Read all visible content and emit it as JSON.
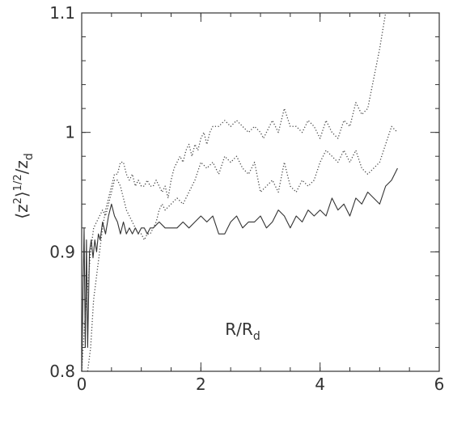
{
  "chart_data": {
    "type": "line",
    "xlabel": {
      "main": "R/R",
      "sub": "d"
    },
    "ylabel": {
      "open": "⟨z",
      "sup1": "2",
      "mid": "⟩",
      "sup2": "1/2",
      "slash": "/z",
      "sub": "d"
    },
    "xlim": [
      0,
      6
    ],
    "ylim": [
      0.8,
      1.1
    ],
    "xticks": [
      {
        "value": 0,
        "label": "0"
      },
      {
        "value": 2,
        "label": "2"
      },
      {
        "value": 4,
        "label": "4"
      },
      {
        "value": 6,
        "label": "6"
      }
    ],
    "yticks": [
      {
        "value": 0.8,
        "label": "0.8"
      },
      {
        "value": 0.9,
        "label": "0.9"
      },
      {
        "value": 1.0,
        "label": "1"
      },
      {
        "value": 1.1,
        "label": "1.1"
      }
    ],
    "minor_x_step": 0.5,
    "minor_y_step": 0.02,
    "grid": false,
    "legend": "none",
    "series": [
      {
        "style": "solid",
        "color": "#333333",
        "points": [
          [
            0.0,
            0.8
          ],
          [
            0.02,
            0.86
          ],
          [
            0.04,
            0.92
          ],
          [
            0.06,
            0.82
          ],
          [
            0.08,
            0.91
          ],
          [
            0.1,
            0.82
          ],
          [
            0.13,
            0.9
          ],
          [
            0.16,
            0.91
          ],
          [
            0.19,
            0.895
          ],
          [
            0.22,
            0.91
          ],
          [
            0.25,
            0.9
          ],
          [
            0.28,
            0.915
          ],
          [
            0.31,
            0.91
          ],
          [
            0.35,
            0.925
          ],
          [
            0.4,
            0.915
          ],
          [
            0.45,
            0.93
          ],
          [
            0.5,
            0.94
          ],
          [
            0.55,
            0.93
          ],
          [
            0.6,
            0.925
          ],
          [
            0.65,
            0.915
          ],
          [
            0.7,
            0.925
          ],
          [
            0.75,
            0.915
          ],
          [
            0.8,
            0.92
          ],
          [
            0.85,
            0.915
          ],
          [
            0.9,
            0.92
          ],
          [
            0.95,
            0.915
          ],
          [
            1.0,
            0.92
          ],
          [
            1.05,
            0.92
          ],
          [
            1.1,
            0.915
          ],
          [
            1.15,
            0.92
          ],
          [
            1.2,
            0.92
          ],
          [
            1.3,
            0.925
          ],
          [
            1.4,
            0.92
          ],
          [
            1.5,
            0.92
          ],
          [
            1.6,
            0.92
          ],
          [
            1.7,
            0.925
          ],
          [
            1.8,
            0.92
          ],
          [
            1.9,
            0.925
          ],
          [
            2.0,
            0.93
          ],
          [
            2.1,
            0.925
          ],
          [
            2.2,
            0.93
          ],
          [
            2.3,
            0.915
          ],
          [
            2.4,
            0.915
          ],
          [
            2.5,
            0.925
          ],
          [
            2.6,
            0.93
          ],
          [
            2.7,
            0.92
          ],
          [
            2.8,
            0.925
          ],
          [
            2.9,
            0.925
          ],
          [
            3.0,
            0.93
          ],
          [
            3.1,
            0.92
          ],
          [
            3.2,
            0.925
          ],
          [
            3.3,
            0.935
          ],
          [
            3.4,
            0.93
          ],
          [
            3.5,
            0.92
          ],
          [
            3.6,
            0.93
          ],
          [
            3.7,
            0.925
          ],
          [
            3.8,
            0.935
          ],
          [
            3.9,
            0.93
          ],
          [
            4.0,
            0.935
          ],
          [
            4.1,
            0.93
          ],
          [
            4.2,
            0.945
          ],
          [
            4.3,
            0.935
          ],
          [
            4.4,
            0.94
          ],
          [
            4.5,
            0.93
          ],
          [
            4.6,
            0.945
          ],
          [
            4.7,
            0.94
          ],
          [
            4.8,
            0.95
          ],
          [
            4.9,
            0.945
          ],
          [
            5.0,
            0.94
          ],
          [
            5.1,
            0.955
          ],
          [
            5.2,
            0.96
          ],
          [
            5.3,
            0.97
          ]
        ]
      },
      {
        "style": "dotted",
        "color": "#444444",
        "points": [
          [
            0.1,
            0.8
          ],
          [
            0.15,
            0.82
          ],
          [
            0.2,
            0.86
          ],
          [
            0.25,
            0.88
          ],
          [
            0.3,
            0.9
          ],
          [
            0.35,
            0.92
          ],
          [
            0.4,
            0.935
          ],
          [
            0.45,
            0.945
          ],
          [
            0.5,
            0.955
          ],
          [
            0.55,
            0.965
          ],
          [
            0.6,
            0.965
          ],
          [
            0.65,
            0.975
          ],
          [
            0.7,
            0.975
          ],
          [
            0.75,
            0.965
          ],
          [
            0.8,
            0.96
          ],
          [
            0.85,
            0.965
          ],
          [
            0.9,
            0.955
          ],
          [
            0.95,
            0.96
          ],
          [
            1.0,
            0.955
          ],
          [
            1.05,
            0.955
          ],
          [
            1.1,
            0.96
          ],
          [
            1.15,
            0.955
          ],
          [
            1.2,
            0.955
          ],
          [
            1.25,
            0.96
          ],
          [
            1.3,
            0.955
          ],
          [
            1.35,
            0.95
          ],
          [
            1.4,
            0.955
          ],
          [
            1.45,
            0.945
          ],
          [
            1.5,
            0.96
          ],
          [
            1.55,
            0.97
          ],
          [
            1.6,
            0.975
          ],
          [
            1.65,
            0.98
          ],
          [
            1.7,
            0.975
          ],
          [
            1.75,
            0.985
          ],
          [
            1.8,
            0.99
          ],
          [
            1.85,
            0.98
          ],
          [
            1.9,
            0.99
          ],
          [
            1.95,
            0.985
          ],
          [
            2.0,
            0.995
          ],
          [
            2.05,
            1.0
          ],
          [
            2.1,
            0.99
          ],
          [
            2.15,
            1.0
          ],
          [
            2.2,
            1.005
          ],
          [
            2.3,
            1.005
          ],
          [
            2.4,
            1.01
          ],
          [
            2.5,
            1.005
          ],
          [
            2.6,
            1.01
          ],
          [
            2.7,
            1.005
          ],
          [
            2.8,
            1.0
          ],
          [
            2.9,
            1.005
          ],
          [
            3.0,
            1.0
          ],
          [
            3.05,
            0.995
          ],
          [
            3.1,
            1.0
          ],
          [
            3.2,
            1.01
          ],
          [
            3.3,
            1.0
          ],
          [
            3.4,
            1.02
          ],
          [
            3.5,
            1.005
          ],
          [
            3.6,
            1.005
          ],
          [
            3.7,
            1.0
          ],
          [
            3.8,
            1.01
          ],
          [
            3.9,
            1.005
          ],
          [
            4.0,
            0.995
          ],
          [
            4.1,
            1.01
          ],
          [
            4.2,
            1.0
          ],
          [
            4.3,
            0.995
          ],
          [
            4.4,
            1.01
          ],
          [
            4.5,
            1.005
          ],
          [
            4.6,
            1.025
          ],
          [
            4.7,
            1.015
          ],
          [
            4.8,
            1.02
          ],
          [
            4.9,
            1.045
          ],
          [
            5.0,
            1.07
          ],
          [
            5.1,
            1.1
          ]
        ]
      },
      {
        "style": "dotted",
        "color": "#444444",
        "points": [
          [
            0.0,
            0.8
          ],
          [
            0.05,
            0.84
          ],
          [
            0.1,
            0.87
          ],
          [
            0.15,
            0.9
          ],
          [
            0.2,
            0.92
          ],
          [
            0.25,
            0.925
          ],
          [
            0.3,
            0.93
          ],
          [
            0.35,
            0.935
          ],
          [
            0.4,
            0.93
          ],
          [
            0.45,
            0.94
          ],
          [
            0.5,
            0.95
          ],
          [
            0.55,
            0.96
          ],
          [
            0.6,
            0.96
          ],
          [
            0.65,
            0.955
          ],
          [
            0.7,
            0.945
          ],
          [
            0.75,
            0.935
          ],
          [
            0.8,
            0.93
          ],
          [
            0.85,
            0.925
          ],
          [
            0.9,
            0.92
          ],
          [
            0.95,
            0.915
          ],
          [
            1.0,
            0.915
          ],
          [
            1.05,
            0.91
          ],
          [
            1.1,
            0.915
          ],
          [
            1.15,
            0.915
          ],
          [
            1.2,
            0.92
          ],
          [
            1.25,
            0.925
          ],
          [
            1.3,
            0.935
          ],
          [
            1.35,
            0.94
          ],
          [
            1.4,
            0.935
          ],
          [
            1.5,
            0.94
          ],
          [
            1.6,
            0.945
          ],
          [
            1.7,
            0.94
          ],
          [
            1.8,
            0.95
          ],
          [
            1.9,
            0.96
          ],
          [
            2.0,
            0.975
          ],
          [
            2.1,
            0.97
          ],
          [
            2.2,
            0.975
          ],
          [
            2.3,
            0.965
          ],
          [
            2.4,
            0.98
          ],
          [
            2.5,
            0.975
          ],
          [
            2.6,
            0.98
          ],
          [
            2.7,
            0.97
          ],
          [
            2.8,
            0.965
          ],
          [
            2.9,
            0.975
          ],
          [
            3.0,
            0.95
          ],
          [
            3.1,
            0.955
          ],
          [
            3.2,
            0.96
          ],
          [
            3.3,
            0.95
          ],
          [
            3.4,
            0.975
          ],
          [
            3.5,
            0.955
          ],
          [
            3.6,
            0.95
          ],
          [
            3.7,
            0.96
          ],
          [
            3.8,
            0.955
          ],
          [
            3.9,
            0.96
          ],
          [
            4.0,
            0.975
          ],
          [
            4.1,
            0.985
          ],
          [
            4.2,
            0.98
          ],
          [
            4.3,
            0.975
          ],
          [
            4.4,
            0.985
          ],
          [
            4.5,
            0.975
          ],
          [
            4.6,
            0.985
          ],
          [
            4.7,
            0.97
          ],
          [
            4.8,
            0.965
          ],
          [
            4.9,
            0.97
          ],
          [
            5.0,
            0.975
          ],
          [
            5.1,
            0.99
          ],
          [
            5.2,
            1.005
          ],
          [
            5.3,
            1.0
          ]
        ]
      }
    ]
  }
}
